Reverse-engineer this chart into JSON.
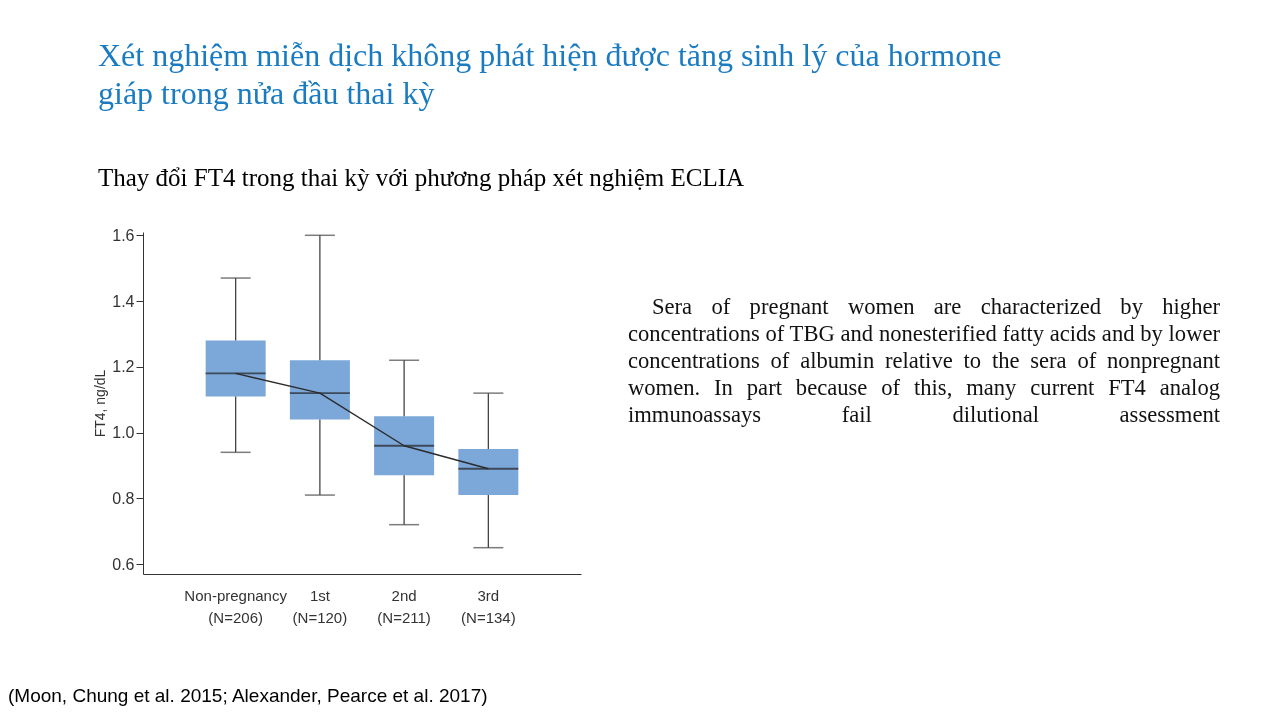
{
  "chart_data": {
    "type": "box",
    "title": "Xét nghiệm miễn dịch không phát hiện được tăng sinh lý của hormone giáp trong nửa đầu thai kỳ",
    "subtitle": "Thay đổi FT4 trong thai kỳ với phương pháp xét nghiệm ECLIA",
    "categories": [
      "Non-pregnancy\n(N=206)",
      "1st\n(N=120)",
      "2nd\n(N=211)",
      "3rd\n(N=134)"
    ],
    "ylabel": "FT4, ng/dL",
    "ylim": [
      0.57,
      1.61
    ],
    "yticks": [
      0.6,
      0.8,
      {
        "value": 1,
        "label": "1.0"
      },
      1.2,
      1.4,
      1.6
    ],
    "grid": false,
    "series": [
      {
        "type": "box",
        "color": "#7ba7d9",
        "boxes": [
          {
            "low": 0.94,
            "q1": 1.11,
            "median": 1.18,
            "q3": 1.28,
            "high": 1.47
          },
          {
            "low": 0.81,
            "q1": 1.04,
            "median": 1.12,
            "q3": 1.22,
            "high": 1.6
          },
          {
            "low": 0.72,
            "q1": 0.87,
            "median": 0.96,
            "q3": 1.05,
            "high": 1.22
          },
          {
            "low": 0.65,
            "q1": 0.81,
            "median": 0.89,
            "q3": 0.95,
            "high": 1.12
          }
        ]
      },
      {
        "type": "line",
        "color": "#2b2b2b",
        "values": [
          1.18,
          1.12,
          0.96,
          0.89
        ]
      }
    ],
    "annotations": [
      "Sera of pregnant women are characterized by higher concentrations of TBG and nonesterified fatty acids and by lower concentrations of albumin relative to the sera of nonpregnant women. In part because of this, many current FT4 analog immunoassays fail dilutional assessment",
      "(Moon, Chung et al. 2015;  Alexander, Pearce et al. 2017)"
    ]
  }
}
